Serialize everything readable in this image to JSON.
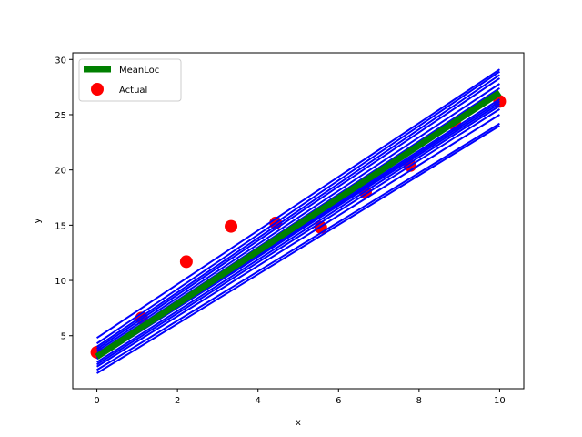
{
  "chart_data": {
    "type": "line",
    "xlabel": "x",
    "ylabel": "y",
    "xlim": [
      -0.6,
      10.6
    ],
    "ylim": [
      0.2,
      30.6
    ],
    "x_ticks": [
      0,
      2,
      4,
      6,
      8,
      10
    ],
    "y_ticks": [
      5,
      10,
      15,
      20,
      25,
      30
    ],
    "grid": false,
    "legend_position": "top-left",
    "colors": {
      "sample_lines": "#0000ff",
      "mean": "#008000",
      "actual": "#ff0000"
    },
    "sample_lines": [
      [
        1.6,
        24.0
      ],
      [
        1.9,
        24.2
      ],
      [
        2.4,
        25.5
      ],
      [
        2.6,
        25.8
      ],
      [
        2.9,
        26.0
      ],
      [
        3.1,
        26.4
      ],
      [
        3.2,
        26.9
      ],
      [
        3.4,
        27.4
      ],
      [
        3.6,
        27.8
      ],
      [
        3.8,
        28.3
      ],
      [
        4.0,
        28.6
      ],
      [
        4.3,
        28.9
      ],
      [
        4.8,
        29.1
      ],
      [
        2.2,
        25.0
      ],
      [
        3.0,
        26.2
      ]
    ],
    "series": [
      {
        "name": "MeanLoc",
        "x": [
          0,
          10
        ],
        "y": [
          3.1,
          27.0
        ]
      },
      {
        "name": "Actual",
        "x": [
          0,
          1.11,
          2.22,
          3.33,
          4.44,
          5.56,
          6.67,
          7.78,
          8.89,
          10
        ],
        "y": [
          3.5,
          6.6,
          11.7,
          14.9,
          15.2,
          14.8,
          18.0,
          20.4,
          24.1,
          26.2
        ]
      }
    ]
  }
}
